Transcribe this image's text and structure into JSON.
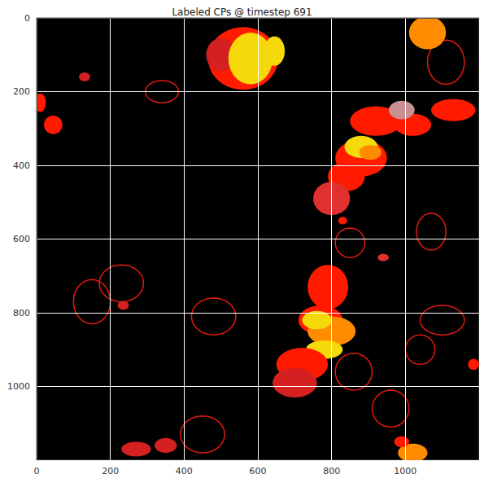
{
  "chart_data": {
    "type": "image",
    "title": "Labeled CPs @ timestep 691",
    "xlim": [
      0,
      1200
    ],
    "ylim": [
      1200,
      0
    ],
    "xticks": [
      0,
      200,
      400,
      600,
      800,
      1000
    ],
    "yticks": [
      0,
      200,
      400,
      600,
      800,
      1000
    ],
    "grid": true,
    "background_color": "#000000",
    "rings": [
      {
        "x": 850,
        "y": 610,
        "rx": 40,
        "ry": 40,
        "color": "#e01a10"
      },
      {
        "x": 340,
        "y": 200,
        "rx": 45,
        "ry": 30,
        "color": "#e01a10"
      },
      {
        "x": 860,
        "y": 960,
        "rx": 50,
        "ry": 50,
        "color": "#e01a10"
      },
      {
        "x": 1040,
        "y": 900,
        "rx": 40,
        "ry": 40,
        "color": "#e01a10"
      },
      {
        "x": 480,
        "y": 810,
        "rx": 60,
        "ry": 50,
        "color": "#e01a10"
      },
      {
        "x": 1070,
        "y": 580,
        "rx": 40,
        "ry": 50,
        "color": "#e01a10"
      },
      {
        "x": 150,
        "y": 770,
        "rx": 50,
        "ry": 60,
        "color": "#e01a10"
      },
      {
        "x": 450,
        "y": 1130,
        "rx": 60,
        "ry": 50,
        "color": "#e01a10"
      },
      {
        "x": 960,
        "y": 1060,
        "rx": 50,
        "ry": 50,
        "color": "#e01a10"
      },
      {
        "x": 1110,
        "y": 120,
        "rx": 50,
        "ry": 60,
        "color": "#e01a10"
      },
      {
        "x": 230,
        "y": 720,
        "rx": 60,
        "ry": 50,
        "color": "#e01a10"
      },
      {
        "x": 1100,
        "y": 820,
        "rx": 60,
        "ry": 40,
        "color": "#e01a10"
      }
    ],
    "blobs": [
      {
        "x": 560,
        "y": 110,
        "rx": 95,
        "ry": 85,
        "color": "#ff1a00"
      },
      {
        "x": 500,
        "y": 100,
        "rx": 40,
        "ry": 45,
        "color": "#d42020"
      },
      {
        "x": 580,
        "y": 110,
        "rx": 60,
        "ry": 70,
        "color": "#f5d90a"
      },
      {
        "x": 645,
        "y": 90,
        "rx": 28,
        "ry": 40,
        "color": "#f5d90a"
      },
      {
        "x": 1060,
        "y": 40,
        "rx": 50,
        "ry": 45,
        "color": "#ff8c00"
      },
      {
        "x": 920,
        "y": 280,
        "rx": 70,
        "ry": 40,
        "color": "#ff1a00"
      },
      {
        "x": 1020,
        "y": 290,
        "rx": 50,
        "ry": 30,
        "color": "#ff1a00"
      },
      {
        "x": 1130,
        "y": 250,
        "rx": 60,
        "ry": 30,
        "color": "#ff1a00"
      },
      {
        "x": 990,
        "y": 250,
        "rx": 35,
        "ry": 25,
        "color": "#c89090"
      },
      {
        "x": 880,
        "y": 380,
        "rx": 70,
        "ry": 50,
        "color": "#ff1a00"
      },
      {
        "x": 880,
        "y": 350,
        "rx": 45,
        "ry": 30,
        "color": "#f5d90a"
      },
      {
        "x": 905,
        "y": 365,
        "rx": 30,
        "ry": 20,
        "color": "#ff8c00"
      },
      {
        "x": 840,
        "y": 430,
        "rx": 50,
        "ry": 40,
        "color": "#ff1a00"
      },
      {
        "x": 800,
        "y": 490,
        "rx": 50,
        "ry": 45,
        "color": "#e03030"
      },
      {
        "x": 10,
        "y": 230,
        "rx": 15,
        "ry": 25,
        "color": "#ff1a00"
      },
      {
        "x": 45,
        "y": 290,
        "rx": 25,
        "ry": 25,
        "color": "#ff1a00"
      },
      {
        "x": 130,
        "y": 160,
        "rx": 15,
        "ry": 12,
        "color": "#d42020"
      },
      {
        "x": 790,
        "y": 730,
        "rx": 55,
        "ry": 60,
        "color": "#ff1a00"
      },
      {
        "x": 770,
        "y": 820,
        "rx": 60,
        "ry": 40,
        "color": "#ff1a00"
      },
      {
        "x": 800,
        "y": 850,
        "rx": 65,
        "ry": 40,
        "color": "#ff8c00"
      },
      {
        "x": 760,
        "y": 820,
        "rx": 40,
        "ry": 25,
        "color": "#f5d90a"
      },
      {
        "x": 780,
        "y": 900,
        "rx": 50,
        "ry": 25,
        "color": "#f5d90a"
      },
      {
        "x": 720,
        "y": 940,
        "rx": 70,
        "ry": 45,
        "color": "#ff1a00"
      },
      {
        "x": 700,
        "y": 990,
        "rx": 60,
        "ry": 40,
        "color": "#d42020"
      },
      {
        "x": 940,
        "y": 650,
        "rx": 15,
        "ry": 10,
        "color": "#e03030"
      },
      {
        "x": 235,
        "y": 780,
        "rx": 15,
        "ry": 12,
        "color": "#d42020"
      },
      {
        "x": 830,
        "y": 550,
        "rx": 12,
        "ry": 10,
        "color": "#ff1a00"
      },
      {
        "x": 1185,
        "y": 940,
        "rx": 15,
        "ry": 15,
        "color": "#ff1a00"
      },
      {
        "x": 270,
        "y": 1170,
        "rx": 40,
        "ry": 20,
        "color": "#d42020"
      },
      {
        "x": 350,
        "y": 1160,
        "rx": 30,
        "ry": 20,
        "color": "#d42020"
      },
      {
        "x": 1020,
        "y": 1180,
        "rx": 40,
        "ry": 25,
        "color": "#ff8c00"
      },
      {
        "x": 990,
        "y": 1150,
        "rx": 20,
        "ry": 15,
        "color": "#ff1a00"
      }
    ]
  }
}
